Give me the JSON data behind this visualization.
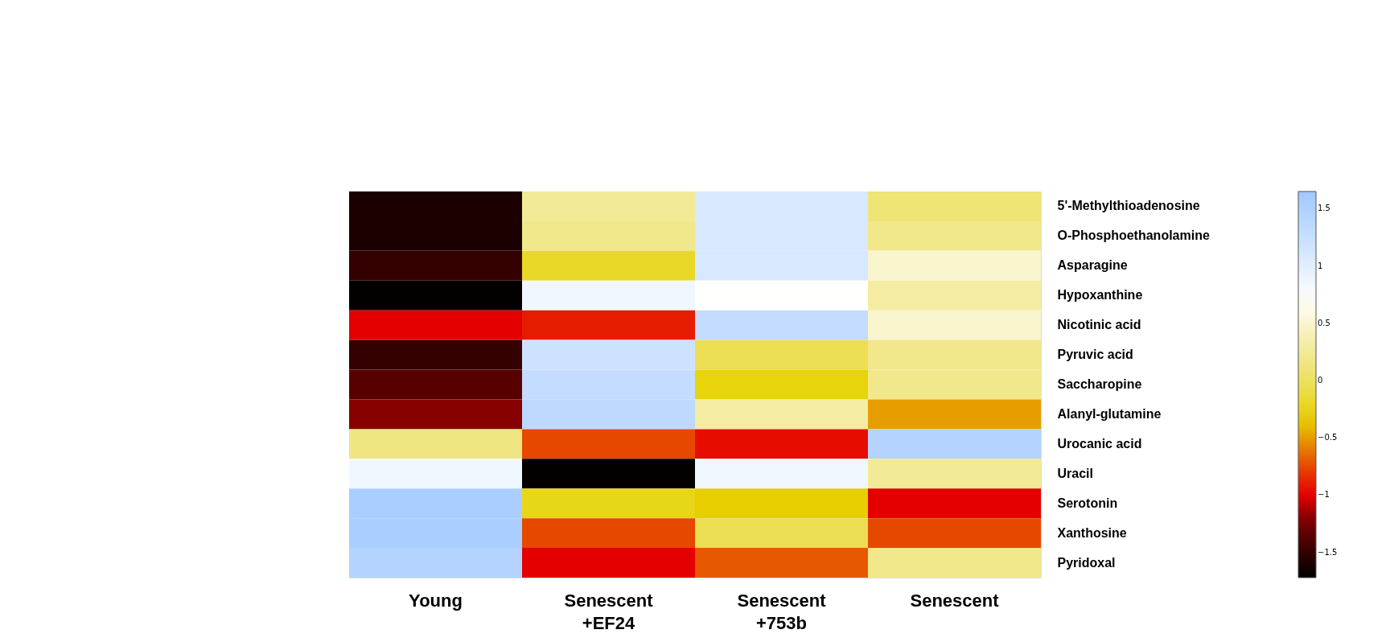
{
  "chart_data": {
    "type": "heatmap",
    "categories": [
      "Young",
      "Senescent +EF24",
      "Senescent +753b",
      "Senescent"
    ],
    "y_categories": [
      "5'-Methylthioadenosine",
      "O-Phosphoethanolamine",
      "Asparagine",
      "Hypoxanthine",
      "Nicotinic acid",
      "Pyruvic acid",
      "Saccharopine",
      "Alanyl-glutamine",
      "Urocanic acid",
      "Uracil",
      "Serotonin",
      "Xanthosine",
      "Pyridoxal"
    ],
    "cells": [
      [
        -1.6,
        0.25,
        1.1,
        0.1
      ],
      [
        -1.6,
        0.2,
        1.1,
        0.2
      ],
      [
        -1.5,
        -0.2,
        1.1,
        0.5
      ],
      [
        -1.7,
        0.85,
        0.7,
        0.3
      ],
      [
        -1.0,
        -0.9,
        1.3,
        0.5
      ],
      [
        -1.5,
        1.2,
        -0.05,
        0.2
      ],
      [
        -1.35,
        1.3,
        -0.3,
        0.2
      ],
      [
        -1.2,
        1.35,
        0.3,
        -0.5
      ],
      [
        0.15,
        -0.75,
        -0.95,
        1.45
      ],
      [
        0.85,
        -1.7,
        0.85,
        0.25
      ],
      [
        1.55,
        -0.25,
        -0.35,
        -1.0
      ],
      [
        1.55,
        -0.75,
        -0.05,
        -0.75
      ],
      [
        1.45,
        -1.0,
        -0.7,
        0.2
      ]
    ],
    "clim": [
      -1.72,
      1.65
    ],
    "cticks": [
      -1.5,
      -1,
      -0.5,
      0,
      0.5,
      1,
      1.5
    ]
  }
}
